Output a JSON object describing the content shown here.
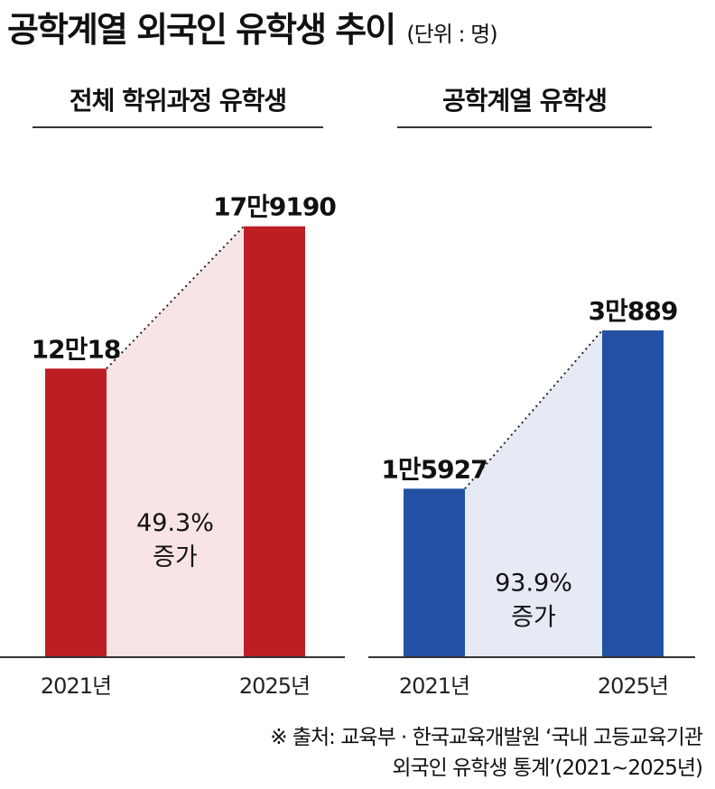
{
  "title": "공학계열 외국인 유학생 추이",
  "unit": "(단위 : 명)",
  "source": {
    "line1": "※ 출처: 교육부 · 한국교육개발원 ‘국내 고등교육기관",
    "line2": "외국인 유학생 통계’(2021~2025년)"
  },
  "chart_data": [
    {
      "type": "bar",
      "title": "전체 학위과정 유학생",
      "categories": [
        "2021년",
        "2025년"
      ],
      "values": [
        120018,
        179190
      ],
      "value_labels": [
        "12만18",
        "17만9190"
      ],
      "annotation": [
        "49.3%",
        "증가"
      ],
      "bar_color": "#bd1e24",
      "fill_color": "#f8e4e4",
      "ylim": [
        0,
        220000
      ]
    },
    {
      "type": "bar",
      "title": "공학계열 유학생",
      "categories": [
        "2021년",
        "2025년"
      ],
      "values": [
        15927,
        30889
      ],
      "value_labels": [
        "1만5927",
        "3만889"
      ],
      "annotation": [
        "93.9%",
        "증가"
      ],
      "bar_color": "#2251a3",
      "fill_color": "#e6eaf5",
      "ylim": [
        0,
        50000
      ]
    }
  ]
}
